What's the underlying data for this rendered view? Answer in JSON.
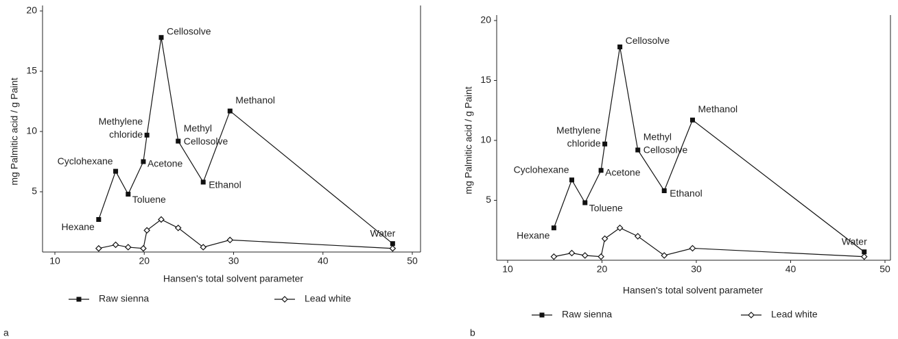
{
  "chart_data": [
    {
      "type": "line",
      "panel_label": "a",
      "xlabel": "Hansen's total solvent parameter",
      "ylabel": "mg Palmitic acid / g Paint",
      "x": [
        14.9,
        16.8,
        18.2,
        19.9,
        20.3,
        21.9,
        23.8,
        26.6,
        29.6,
        47.8
      ],
      "xlim": [
        10,
        50
      ],
      "xticks": [
        10,
        20,
        30,
        40,
        50
      ],
      "ylim": [
        0,
        20
      ],
      "yticks": [
        5,
        10,
        15,
        20
      ],
      "point_labels": [
        [
          "Hexane"
        ],
        [
          "Cyclohexane"
        ],
        [
          "Toluene"
        ],
        [
          "Acetone"
        ],
        [
          "Methylene",
          "chloride"
        ],
        [
          "Cellosolve"
        ],
        [
          "Methyl",
          "Cellosolve"
        ],
        [
          "Ethanol"
        ],
        [
          "Methanol"
        ],
        [
          "Water"
        ]
      ],
      "series": [
        {
          "name": "Raw sienna",
          "color": "#111111",
          "marker": "square",
          "values": [
            2.7,
            6.7,
            4.8,
            7.5,
            9.7,
            17.8,
            9.2,
            5.8,
            11.7,
            0.7
          ]
        },
        {
          "name": "Lead white",
          "color": "#111111",
          "marker": "diamond",
          "values": [
            0.3,
            0.6,
            0.4,
            0.3,
            1.8,
            2.7,
            2.0,
            0.4,
            1.0,
            0.3
          ]
        }
      ]
    },
    {
      "type": "line",
      "panel_label": "b",
      "xlabel": "Hansen's total solvent parameter",
      "ylabel": "mg Palmitic acid / g Paint",
      "x": [
        14.9,
        16.8,
        18.2,
        19.9,
        20.3,
        21.9,
        23.8,
        26.6,
        29.6,
        47.8
      ],
      "xlim": [
        10,
        50
      ],
      "xticks": [
        10,
        20,
        30,
        40,
        50
      ],
      "ylim": [
        0,
        20
      ],
      "yticks": [
        5,
        10,
        15,
        20
      ],
      "point_labels": [
        [
          "Hexane"
        ],
        [
          "Cyclohexane"
        ],
        [
          "Toluene"
        ],
        [
          "Acetone"
        ],
        [
          "Methylene",
          "chloride"
        ],
        [
          "Cellosolve"
        ],
        [
          "Methyl",
          "Cellosolve"
        ],
        [
          "Ethanol"
        ],
        [
          "Methanol"
        ],
        [
          "Water"
        ]
      ],
      "series": [
        {
          "name": "Raw sienna",
          "color": "#111111",
          "marker": "square",
          "values": [
            2.7,
            6.7,
            4.8,
            7.5,
            9.7,
            17.8,
            9.2,
            5.8,
            11.7,
            0.7
          ]
        },
        {
          "name": "Lead white",
          "color": "#111111",
          "marker": "diamond",
          "values": [
            0.3,
            0.6,
            0.4,
            0.3,
            1.8,
            2.7,
            2.0,
            0.4,
            1.0,
            0.3
          ]
        }
      ]
    }
  ]
}
